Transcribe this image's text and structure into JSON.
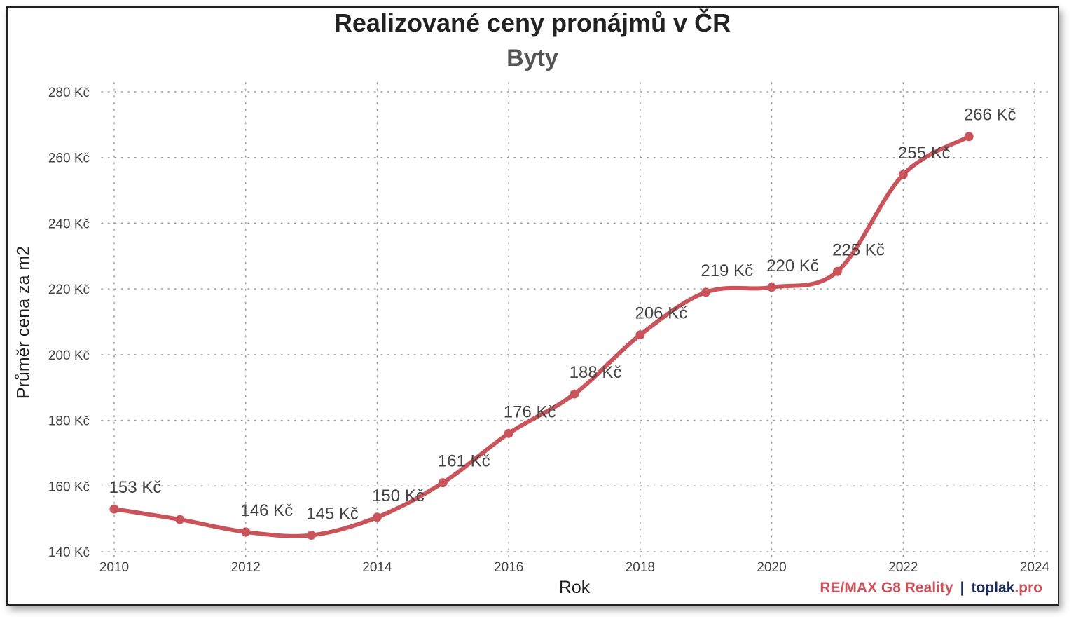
{
  "title": "Realizované ceny pronájmů v ČR",
  "subtitle": "Byty",
  "credits": {
    "remax": "RE/MAX G8 Reality",
    "separator": "|",
    "toplak": "toplak",
    "toplak_suffix": ".pro"
  },
  "chart_data": {
    "type": "line",
    "title": "Realizované ceny pronájmů v ČR",
    "subtitle": "Byty",
    "xlabel": "Rok",
    "ylabel": "Průměr cena za m2",
    "x": [
      2010,
      2011,
      2012,
      2013,
      2014,
      2015,
      2016,
      2017,
      2018,
      2019,
      2020,
      2021,
      2022,
      2023
    ],
    "series": [
      {
        "values": [
          153,
          149.8,
          146,
          145,
          150.5,
          161,
          176,
          188,
          206,
          219,
          220.5,
          225.3,
          254.8,
          266.4
        ],
        "labels": [
          "153 Kč",
          "",
          "146 Kč",
          "145 Kč",
          "150 Kč",
          "161 Kč",
          "176 Kč",
          "188 Kč",
          "206 Kč",
          "219 Kč",
          "220 Kč",
          "225 Kč",
          "255 Kč",
          "266 Kč"
        ],
        "color": "#c9545b"
      }
    ],
    "xlim": [
      2010,
      2024
    ],
    "ylim": [
      140,
      280
    ],
    "xticks": [
      "2010",
      "2012",
      "2014",
      "2016",
      "2018",
      "2020",
      "2022",
      "2024"
    ],
    "yticks": [
      "140 Kč",
      "160 Kč",
      "180 Kč",
      "200 Kč",
      "220 Kč",
      "240 Kč",
      "260 Kč",
      "280 Kč"
    ],
    "grid": true,
    "legend": "none"
  }
}
